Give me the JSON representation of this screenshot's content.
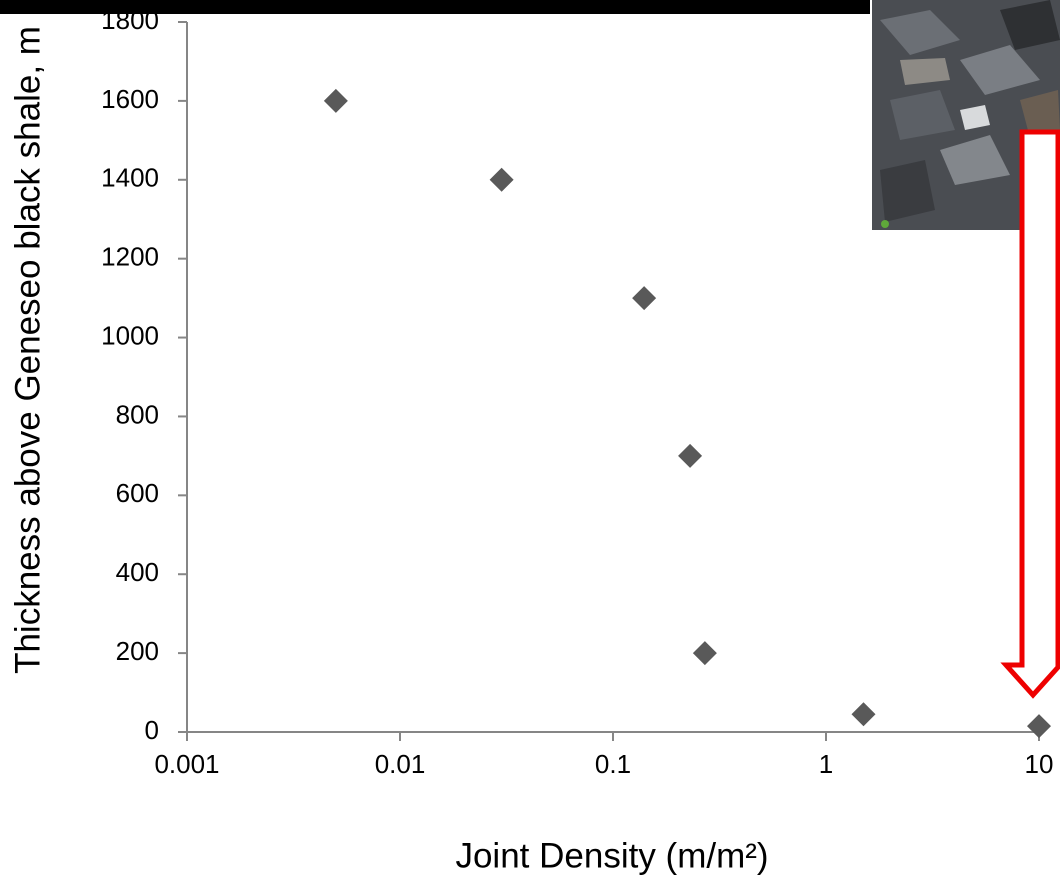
{
  "chart_data": {
    "type": "scatter",
    "x_label": "Joint Density (m/m²)",
    "y_label": "Thickness above Geneseo black shale, m",
    "x": [
      0.005,
      0.03,
      0.14,
      0.23,
      0.27,
      1.5,
      10
    ],
    "values": [
      1600,
      1400,
      1100,
      700,
      200,
      45,
      15
    ],
    "color": "#595959",
    "xscale": "log",
    "xlim": [
      0.001,
      10
    ],
    "xticks": [
      0.001,
      0.01,
      0.1,
      1,
      10
    ],
    "ylim": [
      0,
      1800
    ],
    "yticks": [
      0,
      200,
      400,
      600,
      800,
      1000,
      1200,
      1400,
      1600,
      1800
    ],
    "grid": false
  }
}
